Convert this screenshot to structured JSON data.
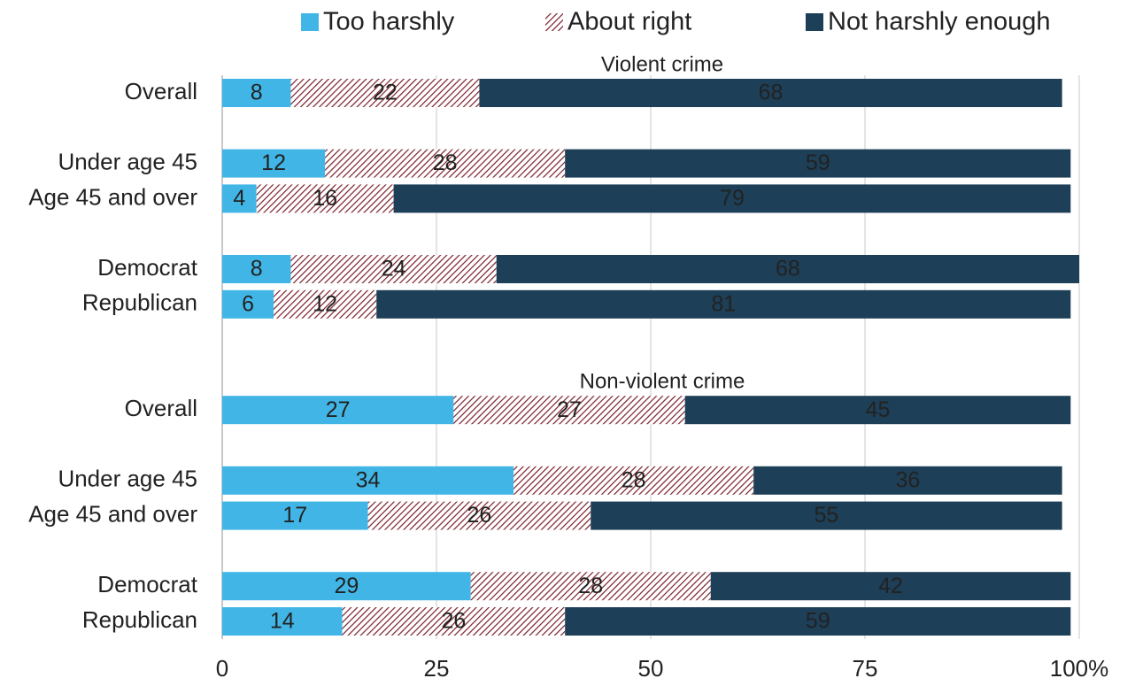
{
  "chart_data": {
    "type": "stacked_barh",
    "annotations": [
      "Violent crime",
      "Non-violent crime"
    ],
    "categories": [
      "Overall",
      null,
      "Under age 45",
      "Age 45 and over",
      null,
      "Democrat",
      "Republican",
      null,
      null,
      "Overall",
      null,
      "Under age 45",
      "Age 45 and over",
      null,
      "Democrat",
      "Republican"
    ],
    "series": [
      {
        "name": "Too harshly",
        "color": "#41b6e6",
        "values": [
          8,
          null,
          12,
          4,
          null,
          8,
          6,
          null,
          null,
          27,
          null,
          34,
          17,
          null,
          29,
          14
        ]
      },
      {
        "name": "About right",
        "color": "#7a1f2b",
        "pattern": "hatch",
        "values": [
          22,
          null,
          28,
          16,
          null,
          24,
          12,
          null,
          null,
          27,
          null,
          28,
          26,
          null,
          28,
          26
        ]
      },
      {
        "name": "Not harshly enough",
        "color": "#1d3f57",
        "values": [
          68,
          null,
          59,
          79,
          null,
          68,
          81,
          null,
          null,
          45,
          null,
          36,
          55,
          null,
          42,
          59
        ]
      }
    ],
    "xlim": [
      0,
      100
    ],
    "xticks": [
      0,
      25,
      50,
      75,
      {
        "value": 100,
        "label": "100%"
      }
    ],
    "grid": true,
    "legend": "top"
  }
}
